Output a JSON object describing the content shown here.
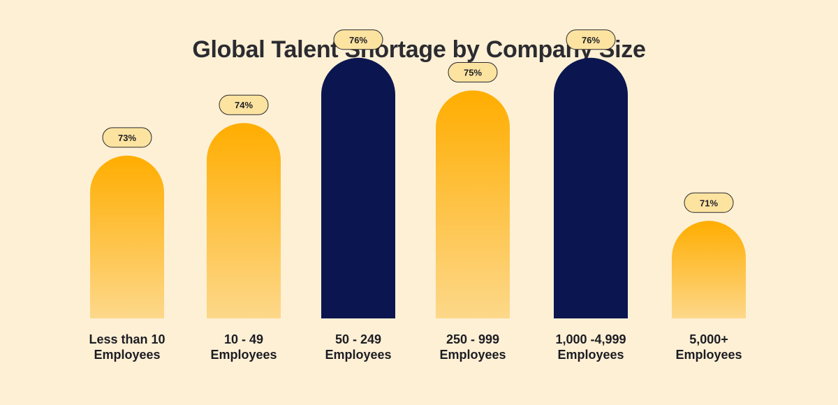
{
  "chart_data": {
    "type": "bar",
    "title": "Global Talent Shortage by Company Size",
    "categories": [
      [
        "Less than 10",
        "Employees"
      ],
      [
        "10 - 49",
        "Employees"
      ],
      [
        "50 - 249",
        "Employees"
      ],
      [
        "250 - 999",
        "Employees"
      ],
      [
        "1,000 -4,999",
        "Employees"
      ],
      [
        "5,000+",
        "Employees"
      ]
    ],
    "values": [
      73,
      74,
      76,
      75,
      76,
      71
    ],
    "value_labels": [
      "73%",
      "74%",
      "76%",
      "75%",
      "76%",
      "71%"
    ],
    "highlighted": [
      false,
      false,
      true,
      false,
      true,
      false
    ],
    "unit": "%",
    "grid": false,
    "legend": "none"
  },
  "colors": {
    "background": "#fdf0d5",
    "bar_gradient_top": "#ffad00",
    "bar_gradient_bottom": "#fdd88a",
    "bar_highlight": "#0b1650",
    "pill_fill": "#fde3a0",
    "pill_stroke": "#2a2a2e"
  }
}
